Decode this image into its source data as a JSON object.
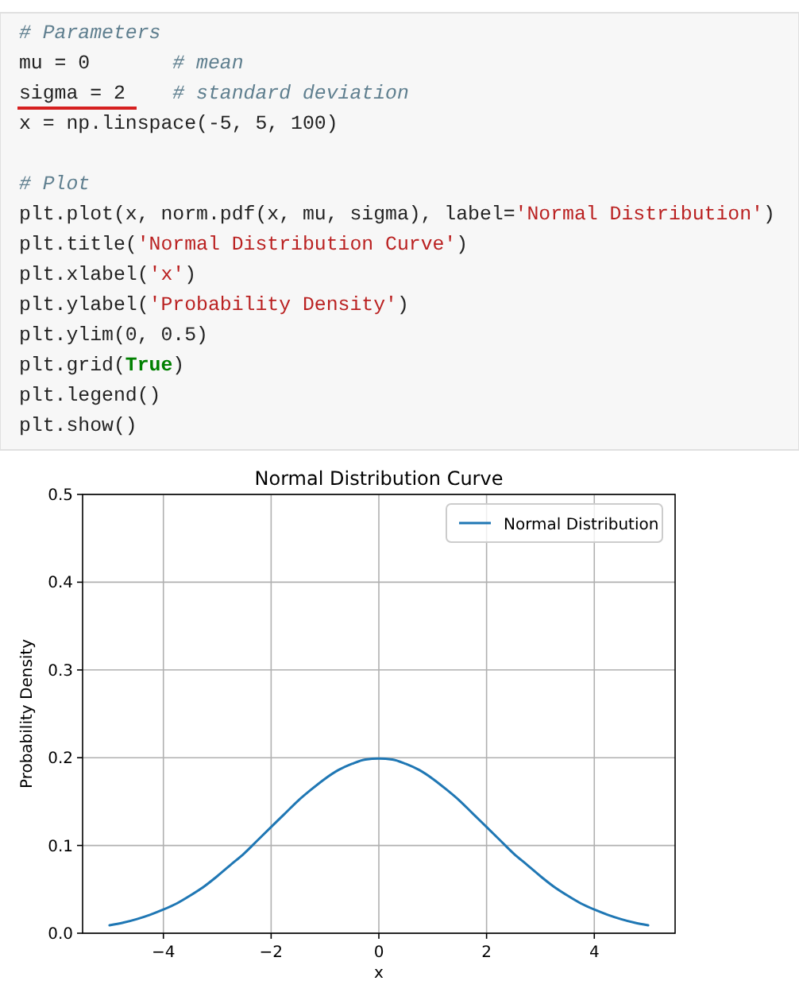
{
  "chart_data": {
    "type": "line",
    "title": "Normal Distribution Curve",
    "xlabel": "x",
    "ylabel": "Probability Density",
    "annotations": [
      "# Parameters",
      "mu = 0       # mean",
      "sigma = 2    # standard deviation",
      "x = np.linspace(-5, 5, 100)",
      "# Plot",
      "plt.plot(x, norm.pdf(x, mu, sigma), label='Normal Distribution')",
      "plt.title('Normal Distribution Curve')",
      "plt.xlabel('x')",
      "plt.ylabel('Probability Density')",
      "plt.ylim(0, 0.5)",
      "plt.grid(True)",
      "plt.legend()",
      "plt.show()"
    ],
    "x": [
      -5,
      -4.75,
      -4.5,
      -4.25,
      -4,
      -3.75,
      -3.5,
      -3.25,
      -3,
      -2.75,
      -2.5,
      -2.25,
      -2,
      -1.75,
      -1.5,
      -1.25,
      -1,
      -0.75,
      -0.5,
      -0.25,
      0,
      0.25,
      0.5,
      0.75,
      1,
      1.25,
      1.5,
      1.75,
      2,
      2.25,
      2.5,
      2.75,
      3,
      3.25,
      3.5,
      3.75,
      4,
      4.25,
      4.5,
      4.75,
      5
    ],
    "series": [
      {
        "name": "Normal Distribution",
        "color": "#1f77b4",
        "values": [
          0.009,
          0.012,
          0.016,
          0.021,
          0.027,
          0.034,
          0.043,
          0.053,
          0.065,
          0.078,
          0.091,
          0.106,
          0.121,
          0.136,
          0.151,
          0.164,
          0.176,
          0.186,
          0.193,
          0.198,
          0.199,
          0.198,
          0.193,
          0.186,
          0.176,
          0.164,
          0.151,
          0.136,
          0.121,
          0.106,
          0.091,
          0.078,
          0.065,
          0.053,
          0.043,
          0.034,
          0.027,
          0.021,
          0.016,
          0.012,
          0.009
        ]
      }
    ],
    "xlim": [
      -5.5,
      5.5
    ],
    "ylim": [
      0,
      0.5
    ],
    "xticks": [
      {
        "value": -4,
        "label": "−4"
      },
      {
        "value": -2,
        "label": "−2"
      },
      0,
      2,
      4
    ],
    "yticks": [
      {
        "value": 0,
        "label": "0.0"
      },
      0.1,
      0.2,
      0.3,
      0.4,
      0.5
    ],
    "grid": true,
    "legend": "top right"
  }
}
